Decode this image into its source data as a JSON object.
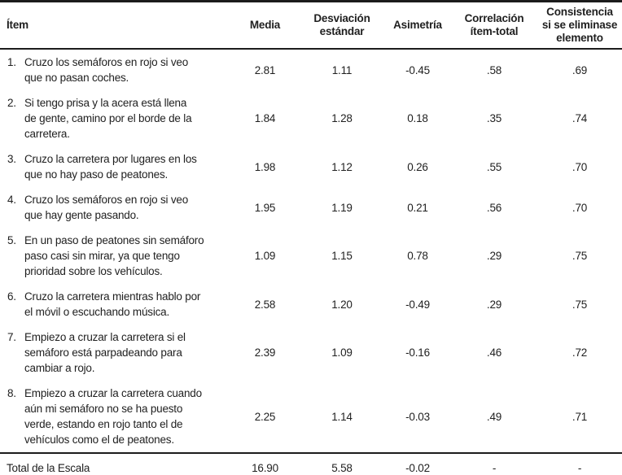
{
  "table": {
    "columns": {
      "item": "Ítem",
      "media": "Media",
      "sd": "Desviación\nestándar",
      "skew": "Asimetría",
      "corr": "Correlación\nítem-total",
      "consist": "Consistencia\nsi se eliminase\nelemento"
    },
    "rows": [
      {
        "num": "1.",
        "text": "Cruzo los semáforos en rojo si veo\nque no pasan coches.",
        "media": "2.81",
        "sd": "1.11",
        "skew": "-0.45",
        "corr": ".58",
        "consist": ".69"
      },
      {
        "num": "2.",
        "text": "Si tengo prisa y la acera está llena\nde gente, camino por el borde de la\ncarretera.",
        "media": "1.84",
        "sd": "1.28",
        "skew": "0.18",
        "corr": ".35",
        "consist": ".74"
      },
      {
        "num": "3.",
        "text": "Cruzo la carretera por lugares en los\nque no hay paso de peatones.",
        "media": "1.98",
        "sd": "1.12",
        "skew": "0.26",
        "corr": ".55",
        "consist": ".70"
      },
      {
        "num": "4.",
        "text": "Cruzo los semáforos en rojo si veo\nque hay gente pasando.",
        "media": "1.95",
        "sd": "1.19",
        "skew": "0.21",
        "corr": ".56",
        "consist": ".70"
      },
      {
        "num": "5.",
        "text": "En un paso de peatones sin semáforo\npaso casi sin mirar, ya que tengo\nprioridad sobre los vehículos.",
        "media": "1.09",
        "sd": "1.15",
        "skew": "0.78",
        "corr": ".29",
        "consist": ".75"
      },
      {
        "num": "6.",
        "text": "Cruzo la carretera mientras hablo por\nel móvil o escuchando música.",
        "media": "2.58",
        "sd": "1.20",
        "skew": "-0.49",
        "corr": ".29",
        "consist": ".75"
      },
      {
        "num": "7.",
        "text": "Empiezo a cruzar la carretera si el\nsemáforo está parpadeando para\ncambiar a rojo.",
        "media": "2.39",
        "sd": "1.09",
        "skew": "-0.16",
        "corr": ".46",
        "consist": ".72"
      },
      {
        "num": "8.",
        "text": "Empiezo a cruzar la carretera cuando\naún mi semáforo no se ha puesto\nverde, estando en rojo tanto el de\nvehículos como el de peatones.",
        "media": "2.25",
        "sd": "1.14",
        "skew": "-0.03",
        "corr": ".49",
        "consist": ".71"
      }
    ],
    "total": {
      "label": "Total de la Escala",
      "media": "16.90",
      "sd": "5.58",
      "skew": "-0.02",
      "corr": "-",
      "consist": "-"
    }
  },
  "colors": {
    "text": "#1f1f1f",
    "rule": "#1c1c1c",
    "background": "#ffffff"
  }
}
